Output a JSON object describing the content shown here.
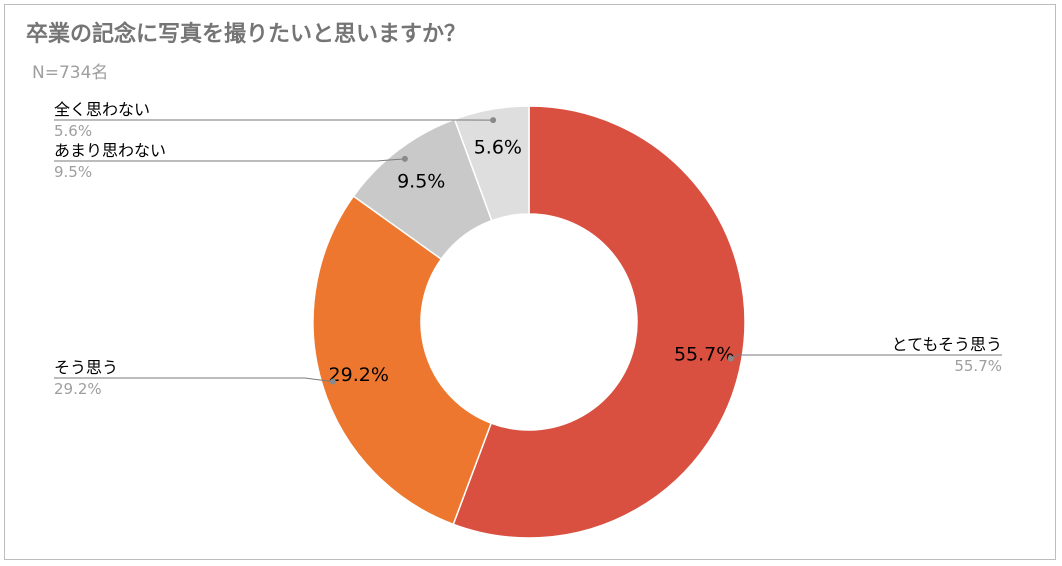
{
  "chart_data": {
    "type": "pie",
    "donut": true,
    "title": "卒業の記念に写真を撮りたいと思いますか？",
    "subtitle": "N=734名",
    "slices": [
      {
        "label": "とてもそう思う",
        "value": 55.7,
        "value_label": "55.7%",
        "color": "#d95040",
        "legend_side": "right"
      },
      {
        "label": "そう思う",
        "value": 29.2,
        "value_label": "29.2%",
        "color": "#ed772f",
        "legend_side": "left"
      },
      {
        "label": "あまり思わない",
        "value": 9.5,
        "value_label": "9.5%",
        "color": "#c9c9c9",
        "legend_side": "left"
      },
      {
        "label": "全く思わない",
        "value": 5.6,
        "value_label": "5.6%",
        "color": "#dedede",
        "legend_side": "left"
      }
    ]
  }
}
